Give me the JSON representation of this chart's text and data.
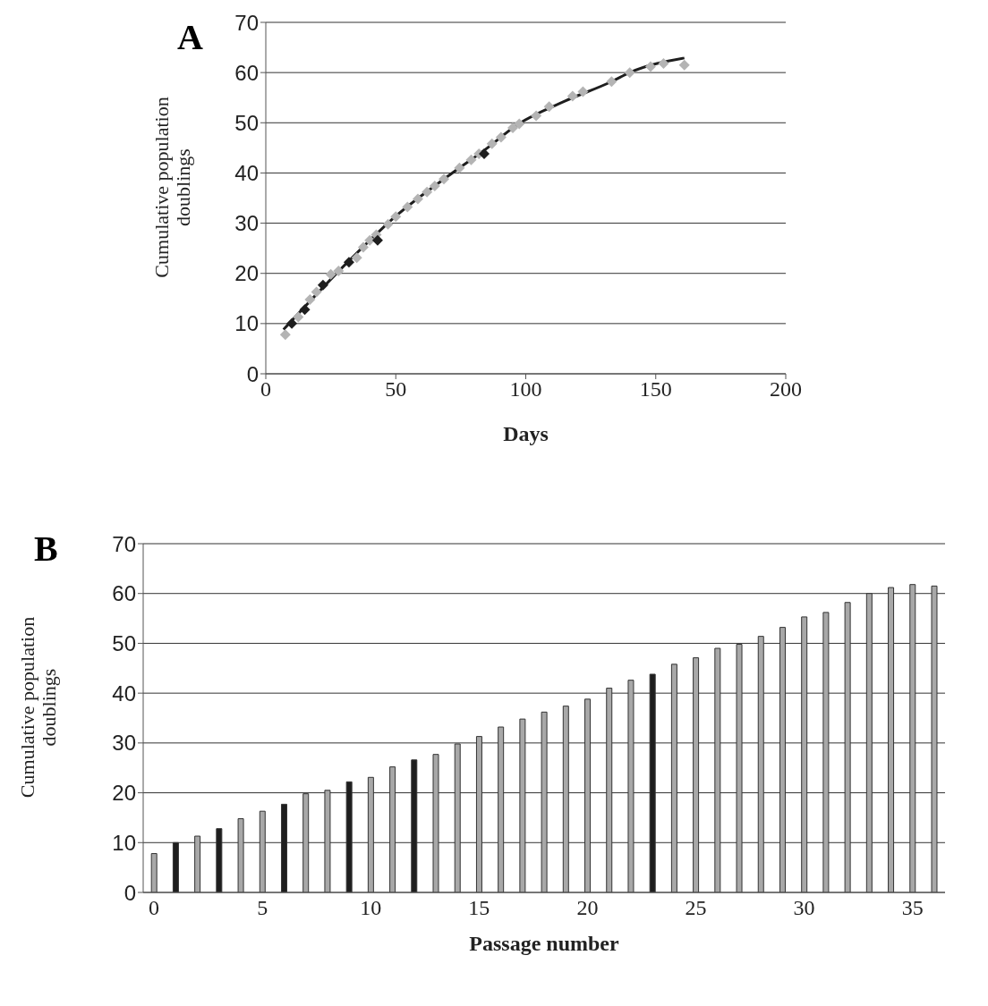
{
  "chart_data": [
    {
      "type": "scatter",
      "title": "A",
      "xlabel": "Days",
      "ylabel": "Cumulative population doublings",
      "xlim": [
        0,
        200
      ],
      "xticks": [
        0,
        50,
        100,
        150,
        200
      ],
      "ylim": [
        0,
        70
      ],
      "yticks": [
        0,
        10,
        20,
        30,
        40,
        50,
        60,
        70
      ],
      "grid": "y",
      "marker": "diamond",
      "series": [
        {
          "type": "scatter",
          "color": "#b4b4b4",
          "x": [
            7.5,
            10,
            12.5,
            15,
            17,
            19.5,
            22,
            25,
            28,
            32,
            35,
            37.5,
            40,
            42.5,
            47,
            50,
            54.5,
            58.5,
            62,
            65,
            68.5,
            74.5,
            79,
            82,
            87,
            90.5,
            95,
            97.5,
            104,
            109,
            118,
            122,
            133,
            140,
            148,
            153,
            161
          ],
          "values": [
            7.8,
            null,
            11.3,
            null,
            14.8,
            16.3,
            null,
            19.8,
            20.5,
            null,
            23.1,
            25.2,
            26.6,
            27.7,
            29.8,
            31.3,
            33.2,
            34.8,
            36.2,
            37.4,
            38.8,
            41,
            42.6,
            43.8,
            45.8,
            47.1,
            49,
            49.8,
            51.4,
            53.2,
            55.3,
            56.2,
            58.2,
            60,
            61.2,
            61.8,
            61.5
          ]
        },
        {
          "type": "scatter",
          "color": "#1e1e1e",
          "x": [
            10,
            15,
            22,
            32,
            43,
            84
          ],
          "values": [
            10,
            12.8,
            17.7,
            22.2,
            26.6,
            43.8
          ]
        },
        {
          "type": "line",
          "color": "#1e1e1e",
          "marker": "none",
          "x": [
            6.8,
            32,
            50,
            71.5,
            84,
            97,
            115,
            133,
            140,
            161
          ],
          "values": [
            8.8,
            22.5,
            31.4,
            39.9,
            44.5,
            49.7,
            54.3,
            58.2,
            60,
            62.9
          ]
        }
      ]
    },
    {
      "type": "bar",
      "title": "B",
      "xlabel": "Passage number",
      "ylabel": "Cumulative population doublings",
      "ylim": [
        0,
        70
      ],
      "yticks": [
        0,
        10,
        20,
        30,
        40,
        50,
        60,
        70
      ],
      "grid": "y",
      "categories": [
        "0",
        null,
        null,
        null,
        null,
        "5",
        null,
        null,
        null,
        null,
        "10",
        null,
        null,
        null,
        null,
        "15",
        null,
        null,
        null,
        null,
        "20",
        null,
        null,
        null,
        null,
        "25",
        null,
        null,
        null,
        null,
        "30",
        null,
        null,
        null,
        null,
        "35",
        null
      ],
      "values": [
        7.8,
        10,
        11.3,
        12.8,
        14.8,
        16.3,
        17.7,
        19.8,
        20.5,
        22.2,
        23.1,
        25.2,
        26.6,
        27.7,
        29.8,
        31.3,
        33.2,
        34.8,
        36.2,
        37.4,
        38.8,
        41,
        42.6,
        43.8,
        45.8,
        47.1,
        49,
        49.8,
        51.4,
        53.2,
        55.3,
        56.2,
        58.2,
        60,
        61.2,
        61.8,
        61.5
      ],
      "colors": [
        "#a8a8a8",
        "#1e1e1e",
        "#a8a8a8",
        "#1e1e1e",
        "#a8a8a8",
        "#a8a8a8",
        "#1e1e1e",
        "#a8a8a8",
        "#a8a8a8",
        "#1e1e1e",
        "#a8a8a8",
        "#a8a8a8",
        "#1e1e1e",
        "#a8a8a8",
        "#a8a8a8",
        "#a8a8a8",
        "#a8a8a8",
        "#a8a8a8",
        "#a8a8a8",
        "#a8a8a8",
        "#a8a8a8",
        "#a8a8a8",
        "#a8a8a8",
        "#1e1e1e",
        "#a8a8a8",
        "#a8a8a8",
        "#a8a8a8",
        "#a8a8a8",
        "#a8a8a8",
        "#a8a8a8",
        "#a8a8a8",
        "#a8a8a8",
        "#a8a8a8",
        "#a8a8a8",
        "#a8a8a8",
        "#a8a8a8",
        "#a8a8a8"
      ]
    }
  ]
}
